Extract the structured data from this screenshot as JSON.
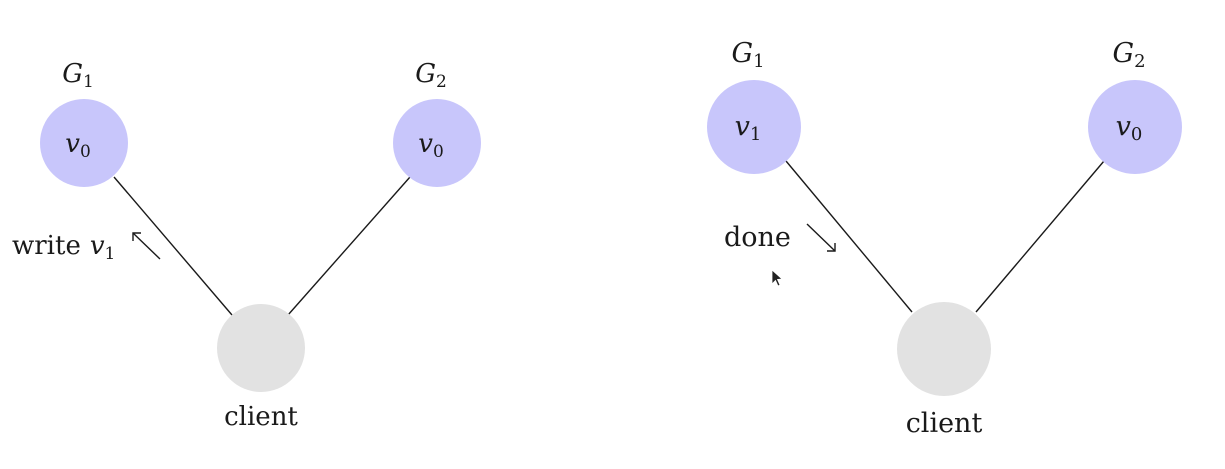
{
  "colors": {
    "server_node": "#c8c6fb",
    "client_node": "#e2e2e2",
    "ink": "#1a1a1a"
  },
  "left": {
    "g1": {
      "name": "G",
      "sub": "1",
      "value": "v",
      "value_sub": "0"
    },
    "g2": {
      "name": "G",
      "sub": "2",
      "value": "v",
      "value_sub": "0"
    },
    "client": "client",
    "message": {
      "text": "write",
      "value": "v",
      "value_sub": "1"
    }
  },
  "right": {
    "g1": {
      "name": "G",
      "sub": "1",
      "value": "v",
      "value_sub": "1"
    },
    "g2": {
      "name": "G",
      "sub": "2",
      "value": "v",
      "value_sub": "0"
    },
    "client": "client",
    "message": {
      "text": "done"
    }
  },
  "icons": {
    "cursor": "mouse-pointer-icon"
  }
}
